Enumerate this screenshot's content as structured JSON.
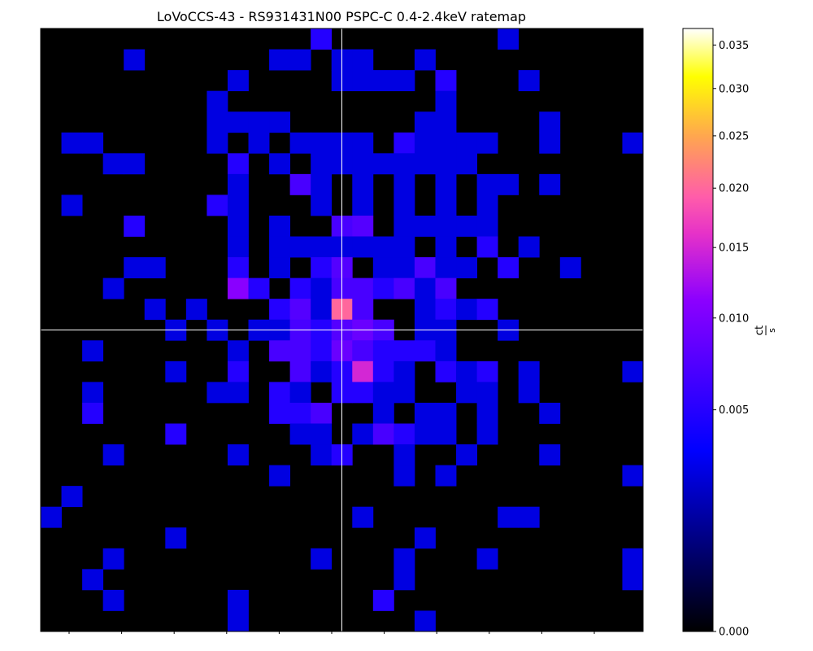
{
  "chart_data": {
    "type": "heatmap",
    "title": "LoVoCCS-43 - RS931431N00 PSPC-C 0.4-2.4keV ratemap",
    "colormap": "gnuplot2",
    "colorbar": {
      "label_num": "ct",
      "label_den": "s",
      "scale": "power-norm",
      "range": [
        0.0,
        0.037
      ],
      "ticks": [
        "0.000",
        "0.005",
        "0.010",
        "0.015",
        "0.020",
        "0.025",
        "0.030",
        "0.035"
      ],
      "tick_values": [
        0.0,
        0.005,
        0.01,
        0.015,
        0.02,
        0.025,
        0.03,
        0.035
      ]
    },
    "grid": {
      "rows": 29,
      "cols": 29
    },
    "crosshair": {
      "row": 14.5,
      "col": 14.5,
      "color": "#ffffff"
    },
    "nonzero_cells": [
      [
        0,
        13,
        0.0049
      ],
      [
        0,
        22,
        0.0026
      ],
      [
        1,
        4,
        0.0026
      ],
      [
        1,
        11,
        0.0026
      ],
      [
        1,
        12,
        0.0026
      ],
      [
        1,
        14,
        0.0026
      ],
      [
        1,
        15,
        0.0026
      ],
      [
        1,
        18,
        0.0026
      ],
      [
        2,
        9,
        0.0026
      ],
      [
        2,
        14,
        0.0026
      ],
      [
        2,
        15,
        0.0026
      ],
      [
        2,
        16,
        0.0026
      ],
      [
        2,
        17,
        0.0026
      ],
      [
        2,
        19,
        0.0049
      ],
      [
        2,
        23,
        0.0026
      ],
      [
        3,
        8,
        0.0026
      ],
      [
        3,
        19,
        0.0026
      ],
      [
        4,
        8,
        0.0026
      ],
      [
        4,
        9,
        0.0026
      ],
      [
        4,
        10,
        0.0026
      ],
      [
        4,
        11,
        0.0026
      ],
      [
        4,
        18,
        0.0026
      ],
      [
        4,
        19,
        0.0026
      ],
      [
        4,
        24,
        0.0026
      ],
      [
        5,
        1,
        0.0026
      ],
      [
        5,
        2,
        0.0026
      ],
      [
        5,
        8,
        0.0026
      ],
      [
        5,
        10,
        0.0026
      ],
      [
        5,
        12,
        0.0026
      ],
      [
        5,
        13,
        0.0026
      ],
      [
        5,
        14,
        0.0026
      ],
      [
        5,
        15,
        0.0026
      ],
      [
        5,
        17,
        0.0049
      ],
      [
        5,
        18,
        0.0026
      ],
      [
        5,
        19,
        0.0026
      ],
      [
        5,
        20,
        0.0026
      ],
      [
        5,
        21,
        0.0026
      ],
      [
        5,
        24,
        0.0026
      ],
      [
        5,
        28,
        0.0026
      ],
      [
        6,
        3,
        0.0026
      ],
      [
        6,
        4,
        0.0026
      ],
      [
        6,
        9,
        0.0049
      ],
      [
        6,
        11,
        0.0026
      ],
      [
        6,
        13,
        0.0026
      ],
      [
        6,
        14,
        0.0026
      ],
      [
        6,
        15,
        0.0026
      ],
      [
        6,
        16,
        0.0026
      ],
      [
        6,
        17,
        0.0026
      ],
      [
        6,
        18,
        0.0026
      ],
      [
        6,
        19,
        0.0026
      ],
      [
        6,
        20,
        0.0026
      ],
      [
        7,
        9,
        0.0026
      ],
      [
        7,
        12,
        0.0068
      ],
      [
        7,
        13,
        0.0026
      ],
      [
        7,
        15,
        0.0026
      ],
      [
        7,
        17,
        0.0026
      ],
      [
        7,
        19,
        0.0026
      ],
      [
        7,
        21,
        0.0026
      ],
      [
        7,
        22,
        0.0026
      ],
      [
        7,
        24,
        0.0026
      ],
      [
        8,
        1,
        0.0026
      ],
      [
        8,
        8,
        0.0049
      ],
      [
        8,
        9,
        0.0026
      ],
      [
        8,
        13,
        0.0026
      ],
      [
        8,
        15,
        0.0026
      ],
      [
        8,
        17,
        0.0026
      ],
      [
        8,
        19,
        0.0026
      ],
      [
        8,
        21,
        0.0026
      ],
      [
        9,
        4,
        0.0049
      ],
      [
        9,
        9,
        0.0026
      ],
      [
        9,
        11,
        0.0026
      ],
      [
        9,
        14,
        0.0068
      ],
      [
        9,
        15,
        0.0075
      ],
      [
        9,
        17,
        0.0026
      ],
      [
        9,
        18,
        0.0026
      ],
      [
        9,
        19,
        0.0026
      ],
      [
        9,
        20,
        0.0026
      ],
      [
        9,
        21,
        0.0026
      ],
      [
        10,
        9,
        0.0026
      ],
      [
        10,
        11,
        0.0026
      ],
      [
        10,
        12,
        0.0026
      ],
      [
        10,
        13,
        0.0026
      ],
      [
        10,
        14,
        0.0026
      ],
      [
        10,
        15,
        0.0026
      ],
      [
        10,
        16,
        0.0026
      ],
      [
        10,
        17,
        0.0026
      ],
      [
        10,
        19,
        0.0026
      ],
      [
        10,
        21,
        0.0049
      ],
      [
        10,
        23,
        0.0026
      ],
      [
        11,
        4,
        0.0026
      ],
      [
        11,
        5,
        0.0026
      ],
      [
        11,
        9,
        0.0049
      ],
      [
        11,
        11,
        0.0026
      ],
      [
        11,
        13,
        0.0049
      ],
      [
        11,
        14,
        0.0075
      ],
      [
        11,
        16,
        0.0026
      ],
      [
        11,
        17,
        0.0026
      ],
      [
        11,
        18,
        0.0068
      ],
      [
        11,
        19,
        0.0026
      ],
      [
        11,
        20,
        0.0026
      ],
      [
        11,
        22,
        0.0049
      ],
      [
        11,
        25,
        0.0026
      ],
      [
        12,
        3,
        0.0026
      ],
      [
        12,
        9,
        0.011
      ],
      [
        12,
        10,
        0.0049
      ],
      [
        12,
        12,
        0.0049
      ],
      [
        12,
        13,
        0.0026
      ],
      [
        12,
        14,
        0.0068
      ],
      [
        12,
        15,
        0.0068
      ],
      [
        12,
        16,
        0.0049
      ],
      [
        12,
        17,
        0.0068
      ],
      [
        12,
        18,
        0.0026
      ],
      [
        12,
        19,
        0.0068
      ],
      [
        13,
        5,
        0.0026
      ],
      [
        13,
        7,
        0.0026
      ],
      [
        13,
        11,
        0.0049
      ],
      [
        13,
        12,
        0.0075
      ],
      [
        13,
        13,
        0.0026
      ],
      [
        13,
        14,
        0.02
      ],
      [
        13,
        15,
        0.0068
      ],
      [
        13,
        18,
        0.0026
      ],
      [
        13,
        19,
        0.0049
      ],
      [
        13,
        20,
        0.0026
      ],
      [
        13,
        21,
        0.0049
      ],
      [
        14,
        6,
        0.0026
      ],
      [
        14,
        8,
        0.0026
      ],
      [
        14,
        10,
        0.0026
      ],
      [
        14,
        11,
        0.0026
      ],
      [
        14,
        12,
        0.0068
      ],
      [
        14,
        13,
        0.0049
      ],
      [
        14,
        14,
        0.0075
      ],
      [
        14,
        15,
        0.0088
      ],
      [
        14,
        16,
        0.0068
      ],
      [
        14,
        18,
        0.0026
      ],
      [
        14,
        19,
        0.0026
      ],
      [
        14,
        22,
        0.0026
      ],
      [
        15,
        2,
        0.0026
      ],
      [
        15,
        9,
        0.0026
      ],
      [
        15,
        11,
        0.0068
      ],
      [
        15,
        12,
        0.0068
      ],
      [
        15,
        13,
        0.0049
      ],
      [
        15,
        14,
        0.0088
      ],
      [
        15,
        15,
        0.0068
      ],
      [
        15,
        16,
        0.0049
      ],
      [
        15,
        17,
        0.0049
      ],
      [
        15,
        18,
        0.0049
      ],
      [
        15,
        19,
        0.0026
      ],
      [
        16,
        6,
        0.0026
      ],
      [
        16,
        9,
        0.0049
      ],
      [
        16,
        12,
        0.0068
      ],
      [
        16,
        13,
        0.0026
      ],
      [
        16,
        14,
        0.0049
      ],
      [
        16,
        15,
        0.015
      ],
      [
        16,
        16,
        0.0049
      ],
      [
        16,
        17,
        0.0026
      ],
      [
        16,
        19,
        0.0049
      ],
      [
        16,
        20,
        0.0026
      ],
      [
        16,
        21,
        0.0049
      ],
      [
        16,
        23,
        0.0026
      ],
      [
        16,
        28,
        0.0026
      ],
      [
        17,
        2,
        0.0026
      ],
      [
        17,
        8,
        0.0026
      ],
      [
        17,
        9,
        0.0026
      ],
      [
        17,
        11,
        0.0049
      ],
      [
        17,
        12,
        0.0026
      ],
      [
        17,
        14,
        0.0049
      ],
      [
        17,
        15,
        0.0049
      ],
      [
        17,
        16,
        0.0026
      ],
      [
        17,
        17,
        0.0026
      ],
      [
        17,
        20,
        0.0026
      ],
      [
        17,
        21,
        0.0026
      ],
      [
        17,
        23,
        0.0026
      ],
      [
        18,
        2,
        0.0049
      ],
      [
        18,
        11,
        0.0049
      ],
      [
        18,
        12,
        0.0049
      ],
      [
        18,
        13,
        0.0068
      ],
      [
        18,
        16,
        0.0026
      ],
      [
        18,
        18,
        0.0026
      ],
      [
        18,
        19,
        0.0026
      ],
      [
        18,
        21,
        0.0026
      ],
      [
        18,
        24,
        0.0026
      ],
      [
        19,
        6,
        0.0049
      ],
      [
        19,
        12,
        0.0026
      ],
      [
        19,
        13,
        0.0026
      ],
      [
        19,
        15,
        0.0026
      ],
      [
        19,
        16,
        0.0068
      ],
      [
        19,
        17,
        0.0049
      ],
      [
        19,
        18,
        0.0026
      ],
      [
        19,
        19,
        0.0026
      ],
      [
        19,
        21,
        0.0026
      ],
      [
        20,
        3,
        0.0026
      ],
      [
        20,
        9,
        0.0026
      ],
      [
        20,
        13,
        0.0026
      ],
      [
        20,
        14,
        0.0049
      ],
      [
        20,
        17,
        0.0026
      ],
      [
        20,
        20,
        0.0026
      ],
      [
        20,
        24,
        0.0026
      ],
      [
        21,
        11,
        0.0026
      ],
      [
        21,
        17,
        0.0026
      ],
      [
        21,
        19,
        0.0026
      ],
      [
        21,
        28,
        0.0026
      ],
      [
        22,
        1,
        0.0026
      ],
      [
        23,
        0,
        0.0026
      ],
      [
        23,
        15,
        0.0026
      ],
      [
        23,
        22,
        0.0026
      ],
      [
        23,
        23,
        0.0026
      ],
      [
        24,
        6,
        0.0026
      ],
      [
        24,
        18,
        0.0026
      ],
      [
        25,
        3,
        0.0026
      ],
      [
        25,
        13,
        0.0026
      ],
      [
        25,
        17,
        0.0026
      ],
      [
        25,
        21,
        0.0026
      ],
      [
        25,
        28,
        0.0026
      ],
      [
        26,
        2,
        0.0026
      ],
      [
        26,
        17,
        0.0026
      ],
      [
        26,
        28,
        0.0026
      ],
      [
        27,
        3,
        0.0026
      ],
      [
        27,
        9,
        0.0026
      ],
      [
        27,
        16,
        0.0049
      ],
      [
        28,
        9,
        0.0026
      ],
      [
        28,
        18,
        0.0026
      ]
    ]
  }
}
